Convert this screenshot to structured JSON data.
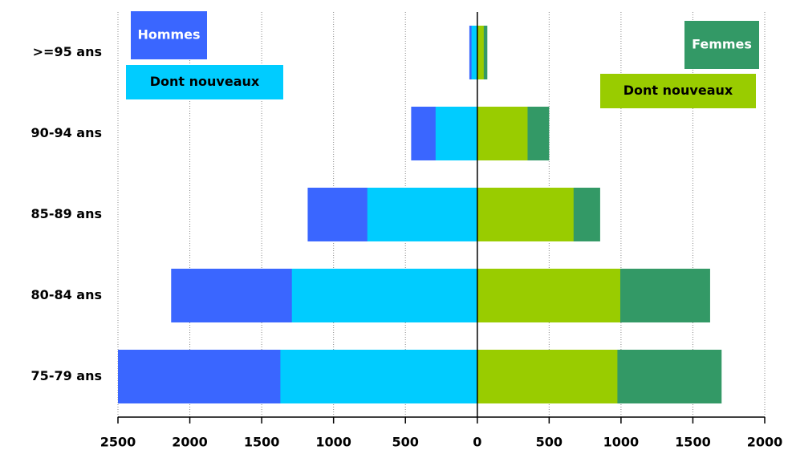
{
  "chart_data": {
    "type": "pyramid",
    "categories": [
      ">=95 ans",
      "90-94 ans",
      "85-89 ans",
      "80-84 ans",
      "75-79 ans"
    ],
    "series": [
      {
        "name": "Hommes",
        "color": "#3a66ff",
        "values": [
          -55,
          -460,
          -1180,
          -2130,
          -2500
        ]
      },
      {
        "name": "Dont nouveaux",
        "color": "#00ccff",
        "values": [
          -40,
          -290,
          -765,
          -1290,
          -1370
        ]
      },
      {
        "name": "Femmes",
        "color": "#339966",
        "values": [
          70,
          500,
          855,
          1620,
          1700
        ]
      },
      {
        "name": "Dont nouveaux",
        "color": "#99cc00",
        "values": [
          45,
          350,
          670,
          995,
          975
        ]
      }
    ],
    "xlim": [
      -2500,
      2000
    ],
    "xticks": [
      {
        "value": -2500,
        "label": "2500"
      },
      {
        "value": -2000,
        "label": "2000"
      },
      {
        "value": -1500,
        "label": "1500"
      },
      {
        "value": -1000,
        "label": "1000"
      },
      {
        "value": -500,
        "label": "500"
      },
      0,
      500,
      1000,
      1500,
      2000
    ],
    "grid": true
  }
}
